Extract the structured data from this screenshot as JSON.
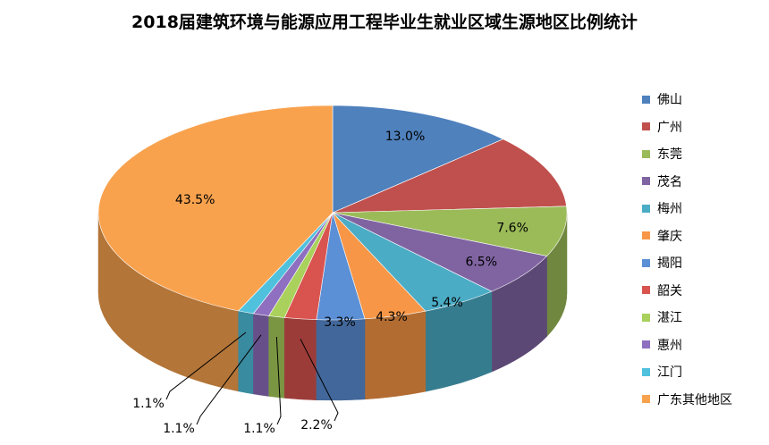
{
  "chart_data": {
    "type": "pie",
    "title": "2018届建筑环境与能源应用工程毕业生就业区域生源地区比例统计",
    "legend_position": "right",
    "slices": [
      {
        "label": "佛山",
        "value": 13.0,
        "value_label": "13.0%",
        "color": "#4f81bd"
      },
      {
        "label": "广州",
        "value": 11.1,
        "value_label": "",
        "color": "#c0504d"
      },
      {
        "label": "东莞",
        "value": 7.6,
        "value_label": "7.6%",
        "color": "#9bbb59"
      },
      {
        "label": "茂名",
        "value": 6.5,
        "value_label": "6.5%",
        "color": "#8064a2"
      },
      {
        "label": "梅州",
        "value": 5.4,
        "value_label": "5.4%",
        "color": "#4bacc6"
      },
      {
        "label": "肇庆",
        "value": 4.3,
        "value_label": "4.3%",
        "color": "#f79646"
      },
      {
        "label": "揭阳",
        "value": 3.3,
        "value_label": "3.3%",
        "color": "#5b8fd6"
      },
      {
        "label": "韶关",
        "value": 2.2,
        "value_label": "2.2%",
        "color": "#d9534f"
      },
      {
        "label": "湛江",
        "value": 1.1,
        "value_label": "1.1%",
        "color": "#a9d15b"
      },
      {
        "label": "惠州",
        "value": 1.1,
        "value_label": "1.1%",
        "color": "#8f6fbf"
      },
      {
        "label": "江门",
        "value": 1.1,
        "value_label": "1.1%",
        "color": "#4fc1dd"
      },
      {
        "label": "广东其他地区",
        "value": 43.5,
        "value_label": "43.5%",
        "color": "#f9a24e"
      }
    ]
  }
}
